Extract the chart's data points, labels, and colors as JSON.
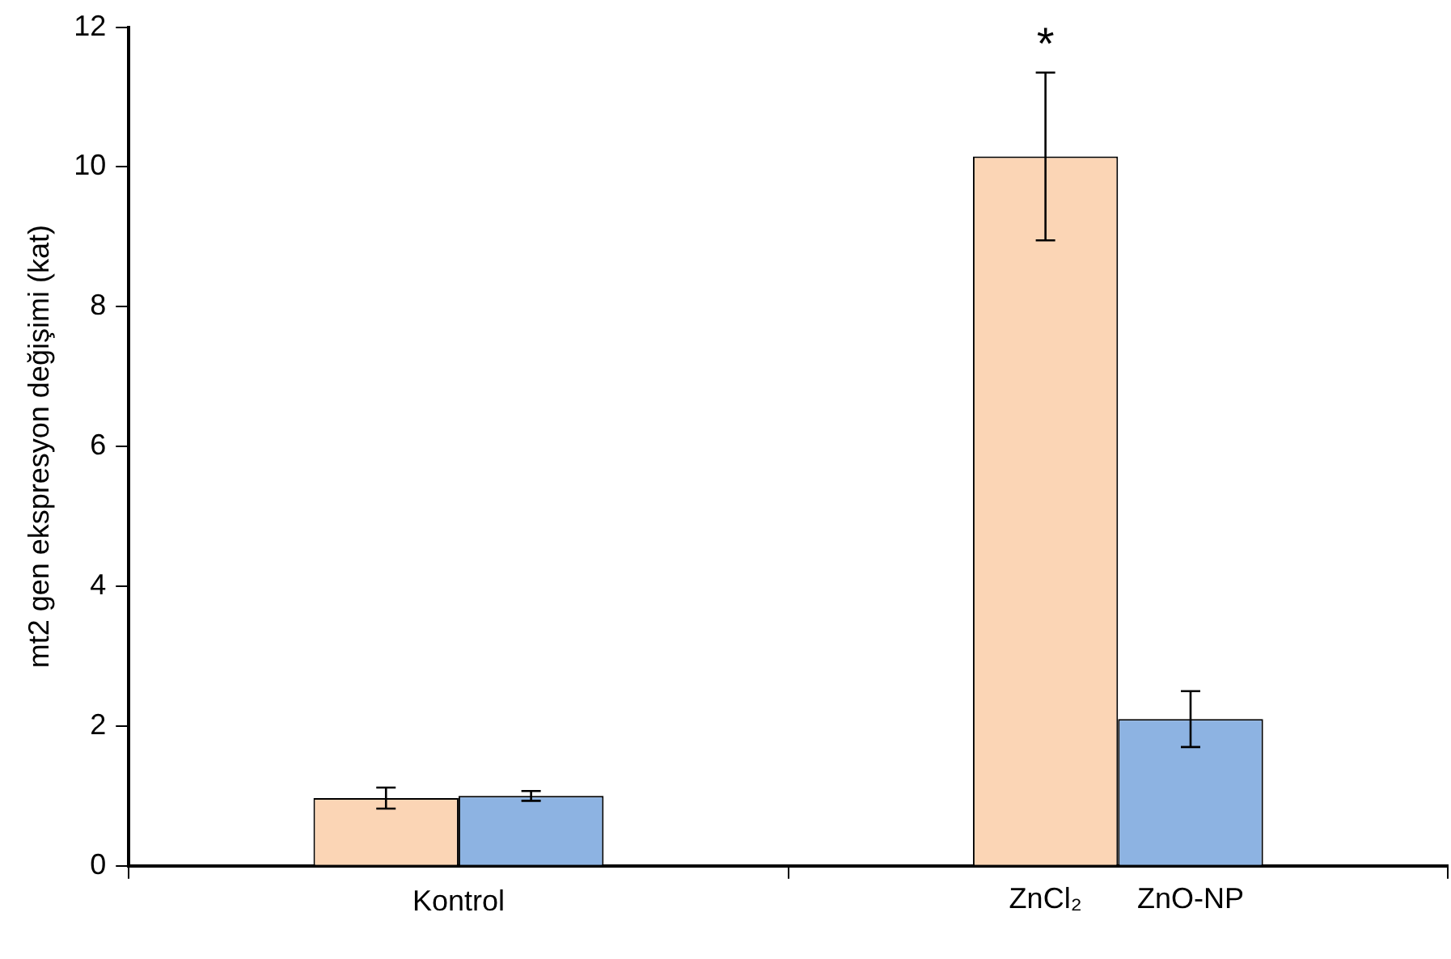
{
  "chart_data": {
    "type": "bar",
    "ylabel": "mt2 gen ekspresyon değişimi (kat)",
    "categories": [
      "Kontrol",
      null
    ],
    "series": [
      {
        "name": "ZnCl₂",
        "color": "#fbd5b5",
        "values": [
          0.97,
          10.15
        ],
        "errors": [
          0.15,
          1.2
        ]
      },
      {
        "name": "ZnO-NP",
        "color": "#8db3e2",
        "values": [
          1.0,
          2.1
        ],
        "errors": [
          0.07,
          0.4
        ]
      }
    ],
    "ylim": [
      0,
      12
    ],
    "yticks": [
      0,
      2,
      4,
      6,
      8,
      10,
      12
    ],
    "grid": false,
    "legend": false,
    "annotations": [
      "*"
    ]
  }
}
